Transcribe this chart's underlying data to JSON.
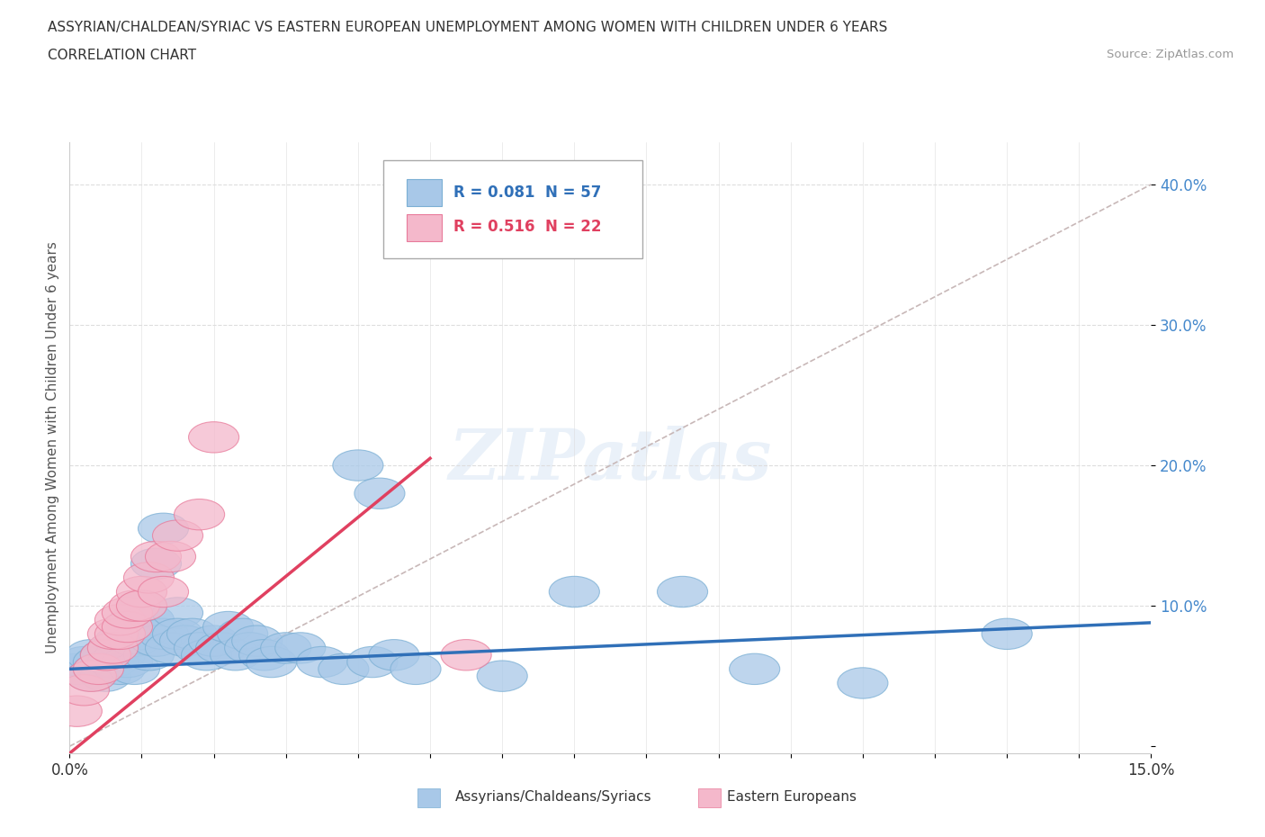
{
  "title_line1": "ASSYRIAN/CHALDEAN/SYRIAC VS EASTERN EUROPEAN UNEMPLOYMENT AMONG WOMEN WITH CHILDREN UNDER 6 YEARS",
  "title_line2": "CORRELATION CHART",
  "source_text": "Source: ZipAtlas.com",
  "ylabel": "Unemployment Among Women with Children Under 6 years",
  "xmin": 0.0,
  "xmax": 0.15,
  "ymin": -0.005,
  "ymax": 0.43,
  "legend_r1": "R = 0.081",
  "legend_n1": "N = 57",
  "legend_r2": "R = 0.516",
  "legend_n2": "N = 22",
  "color_blue": "#a8c8e8",
  "color_blue_edge": "#7bafd4",
  "color_pink": "#f4b8cb",
  "color_pink_edge": "#e87a9a",
  "color_blue_line": "#3070b8",
  "color_pink_line": "#e04060",
  "color_dashed_line": "#c8b8b8",
  "color_ytick": "#4488cc",
  "color_xtick": "#333333",
  "watermark_text": "ZIPatlas",
  "background_color": "#ffffff",
  "blue_line_x0": 0.0,
  "blue_line_y0": 0.055,
  "blue_line_x1": 0.15,
  "blue_line_y1": 0.088,
  "pink_line_x0": 0.0,
  "pink_line_y0": -0.005,
  "pink_line_x1": 0.05,
  "pink_line_y1": 0.205,
  "dash_line_x0": 0.0,
  "dash_line_y0": 0.0,
  "dash_line_x1": 0.15,
  "dash_line_y1": 0.4,
  "blue_scatter_x": [
    0.001,
    0.002,
    0.003,
    0.003,
    0.004,
    0.004,
    0.005,
    0.005,
    0.006,
    0.006,
    0.007,
    0.007,
    0.007,
    0.008,
    0.008,
    0.009,
    0.009,
    0.009,
    0.01,
    0.01,
    0.011,
    0.011,
    0.012,
    0.012,
    0.013,
    0.013,
    0.014,
    0.015,
    0.015,
    0.016,
    0.017,
    0.018,
    0.019,
    0.02,
    0.021,
    0.022,
    0.023,
    0.024,
    0.025,
    0.026,
    0.027,
    0.028,
    0.03,
    0.032,
    0.035,
    0.038,
    0.04,
    0.042,
    0.043,
    0.045,
    0.048,
    0.06,
    0.07,
    0.085,
    0.095,
    0.11,
    0.13
  ],
  "blue_scatter_y": [
    0.055,
    0.06,
    0.065,
    0.05,
    0.06,
    0.055,
    0.065,
    0.05,
    0.07,
    0.06,
    0.075,
    0.065,
    0.055,
    0.08,
    0.06,
    0.09,
    0.075,
    0.055,
    0.1,
    0.08,
    0.09,
    0.065,
    0.13,
    0.075,
    0.155,
    0.08,
    0.07,
    0.095,
    0.08,
    0.075,
    0.08,
    0.07,
    0.065,
    0.075,
    0.07,
    0.085,
    0.065,
    0.08,
    0.07,
    0.075,
    0.065,
    0.06,
    0.07,
    0.07,
    0.06,
    0.055,
    0.2,
    0.06,
    0.18,
    0.065,
    0.055,
    0.05,
    0.11,
    0.11,
    0.055,
    0.045,
    0.08
  ],
  "pink_scatter_x": [
    0.001,
    0.002,
    0.003,
    0.004,
    0.005,
    0.006,
    0.006,
    0.007,
    0.007,
    0.008,
    0.008,
    0.009,
    0.01,
    0.01,
    0.011,
    0.012,
    0.013,
    0.014,
    0.015,
    0.018,
    0.02,
    0.055
  ],
  "pink_scatter_y": [
    0.025,
    0.04,
    0.05,
    0.055,
    0.065,
    0.07,
    0.08,
    0.08,
    0.09,
    0.085,
    0.095,
    0.1,
    0.11,
    0.1,
    0.12,
    0.135,
    0.11,
    0.135,
    0.15,
    0.165,
    0.22,
    0.065
  ]
}
